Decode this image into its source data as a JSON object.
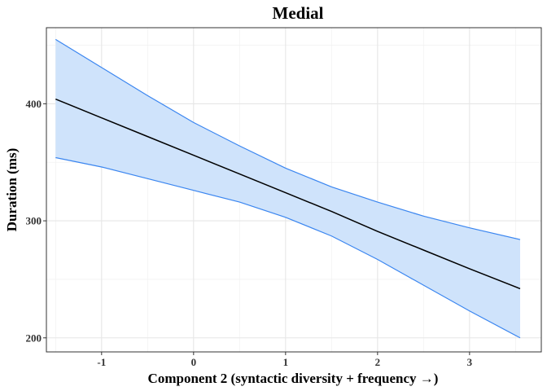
{
  "chart_data": {
    "type": "line",
    "title": "Medial",
    "xlabel": "Component 2 (syntactic diversity + frequency →)",
    "ylabel": "Duration (ms)",
    "xlim": [
      -1.6,
      3.78
    ],
    "ylim": [
      188,
      465
    ],
    "x_ticks": [
      -1,
      0,
      1,
      2,
      3
    ],
    "y_ticks": [
      200,
      300,
      400
    ],
    "x_tick_labels": [
      "-1",
      "0",
      "1",
      "2",
      "3"
    ],
    "y_tick_labels": [
      "200",
      "300",
      "400"
    ],
    "grid": true,
    "line_color": "#000000",
    "ribbon_fill": "#cfe3fb",
    "ribbon_edge": "#3b86f0",
    "series": [
      {
        "x": [
          -1.5,
          -1.0,
          -0.5,
          0.0,
          0.5,
          1.0,
          1.5,
          2.0,
          2.5,
          3.0,
          3.55
        ],
        "fit": [
          404,
          388,
          372,
          356,
          340,
          324,
          308,
          291,
          275,
          259,
          242
        ],
        "upper": [
          455,
          431,
          407,
          384,
          364,
          345,
          329,
          316,
          304,
          294,
          284
        ],
        "lower": [
          354,
          346,
          336,
          326,
          316,
          303,
          287,
          267,
          245,
          223,
          200
        ]
      }
    ]
  }
}
